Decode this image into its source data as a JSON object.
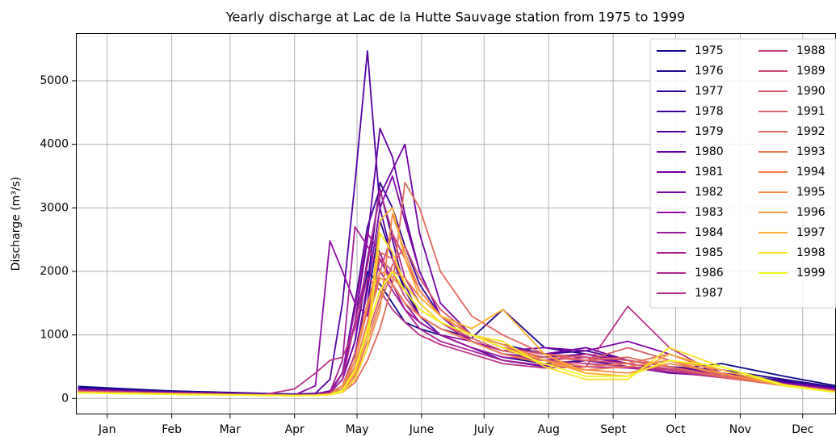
{
  "chart_data": {
    "type": "line",
    "title": "Yearly discharge at Lac de la Hutte Sauvage station from 1975 to 1999",
    "ylabel": "Discharge (m³/s)",
    "x": [
      1,
      45,
      90,
      105,
      115,
      122,
      128,
      134,
      140,
      146,
      152,
      158,
      165,
      175,
      190,
      205,
      225,
      245,
      265,
      285,
      310,
      340,
      365
    ],
    "xlim": [
      0,
      365
    ],
    "xticks": [
      {
        "value": 15,
        "label": "Jan"
      },
      {
        "value": 46,
        "label": "Feb"
      },
      {
        "value": 74,
        "label": "Mar"
      },
      {
        "value": 105,
        "label": "Apr"
      },
      {
        "value": 135,
        "label": "May"
      },
      {
        "value": 166,
        "label": "June"
      },
      {
        "value": 196,
        "label": "July"
      },
      {
        "value": 227,
        "label": "Aug"
      },
      {
        "value": 258,
        "label": "Sept"
      },
      {
        "value": 288,
        "label": "Oct"
      },
      {
        "value": 319,
        "label": "Nov"
      },
      {
        "value": 349,
        "label": "Dec"
      }
    ],
    "ylim": [
      -250,
      5750
    ],
    "yticks": [
      0,
      1000,
      2000,
      3000,
      4000,
      5000
    ],
    "grid": true,
    "legend": "upper right",
    "series": [
      {
        "name": "1975",
        "color": "#0d0887",
        "values": [
          190,
          120,
          80,
          70,
          80,
          100,
          300,
          900,
          2000,
          1800,
          1500,
          1200,
          1100,
          1000,
          800,
          650,
          550,
          600,
          500,
          450,
          550,
          350,
          200
        ]
      },
      {
        "name": "1976",
        "color": "#220690",
        "values": [
          170,
          110,
          75,
          65,
          70,
          90,
          200,
          700,
          1500,
          2800,
          2200,
          1700,
          1300,
          1100,
          950,
          1400,
          800,
          700,
          600,
          500,
          450,
          300,
          180
        ]
      },
      {
        "name": "1977",
        "color": "#330597",
        "values": [
          160,
          105,
          70,
          60,
          65,
          80,
          150,
          600,
          1800,
          3400,
          3000,
          2400,
          1800,
          1300,
          1000,
          850,
          700,
          750,
          600,
          500,
          400,
          280,
          170
        ]
      },
      {
        "name": "1978",
        "color": "#41049d",
        "values": [
          150,
          100,
          70,
          60,
          65,
          90,
          400,
          1500,
          2700,
          3300,
          2500,
          1700,
          1400,
          1200,
          900,
          700,
          650,
          700,
          550,
          450,
          400,
          260,
          160
        ]
      },
      {
        "name": "1979",
        "color": "#5302a3",
        "values": [
          140,
          100,
          70,
          60,
          80,
          300,
          1500,
          3400,
          5470,
          3000,
          2200,
          1800,
          1300,
          1000,
          800,
          600,
          500,
          600,
          500,
          400,
          350,
          250,
          150
        ]
      },
      {
        "name": "1980",
        "color": "#6300a7",
        "values": [
          150,
          100,
          70,
          60,
          70,
          120,
          400,
          1200,
          2500,
          4250,
          3800,
          2900,
          2000,
          1300,
          1000,
          800,
          700,
          650,
          550,
          450,
          380,
          250,
          150
        ]
      },
      {
        "name": "1981",
        "color": "#7201a8",
        "values": [
          140,
          95,
          65,
          55,
          60,
          90,
          300,
          900,
          2200,
          3200,
          3600,
          4000,
          2600,
          1500,
          1000,
          800,
          700,
          800,
          600,
          500,
          380,
          240,
          150
        ]
      },
      {
        "name": "1982",
        "color": "#8004a8",
        "values": [
          130,
          90,
          65,
          55,
          60,
          80,
          200,
          700,
          1700,
          3000,
          3500,
          2800,
          2000,
          1300,
          900,
          750,
          800,
          750,
          900,
          700,
          400,
          240,
          140
        ]
      },
      {
        "name": "1983",
        "color": "#8e0ca4",
        "values": [
          130,
          90,
          65,
          55,
          200,
          2480,
          2000,
          1500,
          1300,
          2200,
          1800,
          1500,
          1200,
          1000,
          900,
          700,
          600,
          650,
          550,
          450,
          350,
          230,
          140
        ]
      },
      {
        "name": "1984",
        "color": "#9b179e",
        "values": [
          130,
          90,
          60,
          55,
          60,
          100,
          400,
          1400,
          2600,
          2300,
          1800,
          1400,
          1200,
          1000,
          800,
          650,
          600,
          550,
          500,
          420,
          340,
          220,
          130
        ]
      },
      {
        "name": "1985",
        "color": "#a62098",
        "values": [
          120,
          85,
          60,
          55,
          60,
          100,
          600,
          2700,
          2400,
          2000,
          1700,
          1400,
          1100,
          900,
          750,
          600,
          520,
          500,
          480,
          420,
          330,
          220,
          130
        ]
      },
      {
        "name": "1986",
        "color": "#b12a90",
        "values": [
          120,
          85,
          60,
          55,
          60,
          90,
          300,
          1200,
          2100,
          3280,
          2600,
          1900,
          1500,
          1200,
          900,
          700,
          600,
          700,
          600,
          500,
          340,
          220,
          130
        ]
      },
      {
        "name": "1987",
        "color": "#bb3488",
        "values": [
          120,
          85,
          60,
          150,
          400,
          600,
          650,
          1100,
          1900,
          1700,
          1400,
          1200,
          1000,
          850,
          700,
          550,
          480,
          500,
          1450,
          800,
          350,
          220,
          130
        ]
      },
      {
        "name": "1988",
        "color": "#c53f7e",
        "values": [
          110,
          80,
          55,
          50,
          55,
          80,
          200,
          700,
          1500,
          2200,
          2000,
          1600,
          1300,
          1100,
          900,
          700,
          600,
          550,
          500,
          450,
          330,
          210,
          120
        ]
      },
      {
        "name": "1989",
        "color": "#cd4a76",
        "values": [
          110,
          80,
          55,
          50,
          55,
          70,
          150,
          500,
          1200,
          2000,
          2600,
          2200,
          1700,
          1300,
          1000,
          800,
          650,
          600,
          550,
          470,
          340,
          210,
          120
        ]
      },
      {
        "name": "1990",
        "color": "#d5546e",
        "values": [
          110,
          80,
          55,
          50,
          55,
          70,
          120,
          400,
          1000,
          1600,
          2100,
          2400,
          1900,
          1400,
          1000,
          800,
          700,
          650,
          600,
          500,
          350,
          210,
          120
        ]
      },
      {
        "name": "1991",
        "color": "#dd5e66",
        "values": [
          110,
          80,
          55,
          50,
          55,
          70,
          150,
          600,
          1400,
          2300,
          2200,
          1800,
          1500,
          1200,
          950,
          750,
          650,
          600,
          800,
          600,
          350,
          210,
          120
        ]
      },
      {
        "name": "1992",
        "color": "#e4695e",
        "values": [
          100,
          75,
          55,
          50,
          50,
          60,
          100,
          250,
          600,
          1100,
          1800,
          3400,
          3000,
          2000,
          1300,
          1000,
          700,
          600,
          650,
          500,
          340,
          200,
          110
        ]
      },
      {
        "name": "1993",
        "color": "#ea7457",
        "values": [
          100,
          75,
          55,
          50,
          50,
          65,
          120,
          350,
          900,
          1500,
          2000,
          1900,
          1600,
          1300,
          1000,
          800,
          600,
          500,
          550,
          700,
          400,
          200,
          110
        ]
      },
      {
        "name": "1994",
        "color": "#f0804e",
        "values": [
          100,
          75,
          50,
          45,
          50,
          60,
          150,
          500,
          1200,
          1900,
          1800,
          1500,
          1300,
          1100,
          900,
          700,
          550,
          450,
          500,
          600,
          380,
          200,
          110
        ]
      },
      {
        "name": "1995",
        "color": "#f58c46",
        "values": [
          100,
          70,
          50,
          45,
          50,
          60,
          100,
          300,
          800,
          1400,
          2900,
          2300,
          1700,
          1300,
          1000,
          800,
          600,
          450,
          400,
          550,
          400,
          200,
          100
        ]
      },
      {
        "name": "1996",
        "color": "#f99b3e",
        "values": [
          90,
          70,
          50,
          45,
          50,
          70,
          200,
          600,
          1500,
          2000,
          1900,
          1700,
          1400,
          1200,
          1000,
          850,
          600,
          400,
          350,
          600,
          450,
          200,
          100
        ]
      },
      {
        "name": "1997",
        "color": "#fdb32f",
        "values": [
          90,
          70,
          50,
          45,
          50,
          60,
          120,
          400,
          1000,
          2800,
          3000,
          2200,
          1600,
          1300,
          1100,
          1400,
          700,
          400,
          350,
          700,
          450,
          200,
          100
        ]
      },
      {
        "name": "1998",
        "color": "#f7e225",
        "values": [
          90,
          65,
          50,
          45,
          50,
          60,
          100,
          300,
          800,
          2600,
          2300,
          1800,
          1500,
          1200,
          1000,
          900,
          500,
          300,
          300,
          800,
          500,
          220,
          100
        ]
      },
      {
        "name": "1999",
        "color": "#f0f921",
        "values": [
          90,
          65,
          50,
          45,
          50,
          60,
          130,
          450,
          1100,
          1700,
          2000,
          1700,
          1400,
          1200,
          1000,
          800,
          550,
          350,
          350,
          600,
          500,
          200,
          100
        ]
      }
    ]
  }
}
